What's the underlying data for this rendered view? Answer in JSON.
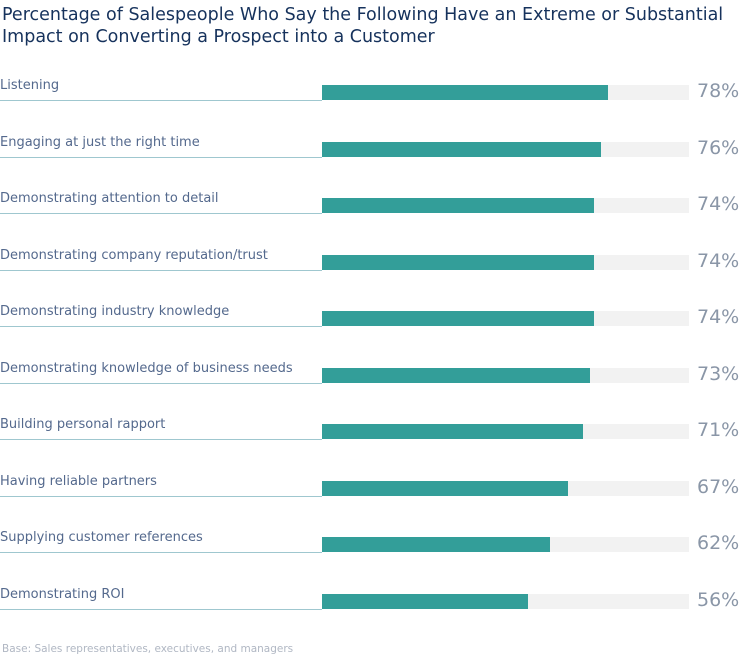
{
  "chart_data": {
    "type": "bar",
    "orientation": "horizontal",
    "title": "Percentage of Salespeople Who Say the Following Have an Extreme or Substantial Impact on Converting a Prospect into a Customer",
    "categories": [
      "Listening",
      "Engaging at just the right time",
      "Demonstrating attention to detail",
      "Demonstrating company reputation/trust",
      "Demonstrating industry knowledge",
      "Demonstrating knowledge of business needs",
      "Building personal rapport",
      "Having reliable partners",
      "Supplying customer references",
      "Demonstrating ROI"
    ],
    "values": [
      78,
      76,
      74,
      74,
      74,
      73,
      71,
      67,
      62,
      56
    ],
    "value_labels": [
      "78%",
      "76%",
      "74%",
      "74%",
      "74%",
      "73%",
      "71%",
      "67%",
      "62%",
      "56%"
    ],
    "xlim": [
      0,
      100
    ],
    "unit": "%",
    "grid": false,
    "legend": "none",
    "footnote": "Base: Sales representatives, executives, and managers"
  },
  "colors": {
    "bar": "#339e99",
    "track": "#f2f2f2",
    "title": "#16325c",
    "label": "#54698d",
    "value": "#8a96a7",
    "underline": "#9fc7cf"
  }
}
